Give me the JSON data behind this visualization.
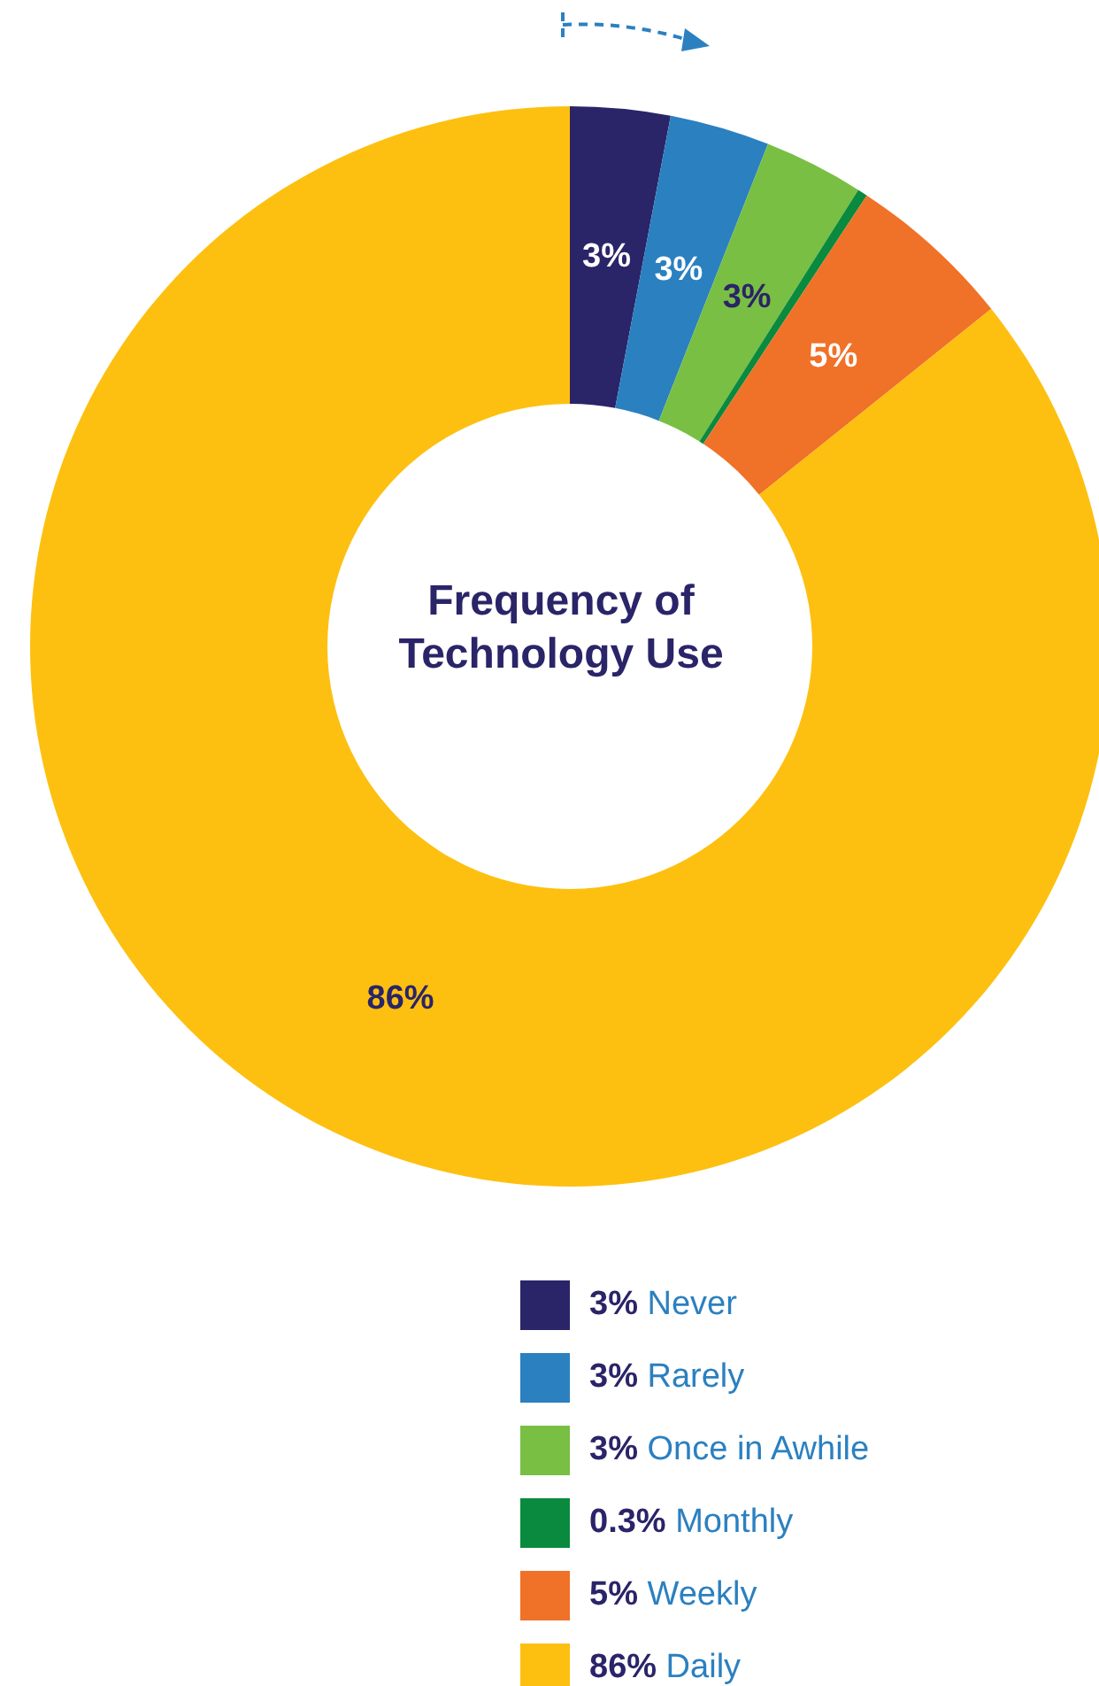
{
  "chart_data": {
    "type": "donut",
    "title": "Frequency of Technology Use",
    "categories": [
      "3% Never",
      "3% Rarely",
      "3% Once in Awhile",
      "0.3% Monthly",
      "5% Weekly",
      "86% Daily"
    ],
    "values": [
      3,
      3,
      3,
      0.3,
      5,
      86
    ],
    "colors": [
      "#2a2468",
      "#2b80c0",
      "#79bf43",
      "#0a8a3e",
      "#f07128",
      "#fdc010"
    ],
    "value_labels": [
      "3%",
      "3%",
      "3%",
      null,
      "5%",
      "86%"
    ],
    "legend": "bottom"
  }
}
